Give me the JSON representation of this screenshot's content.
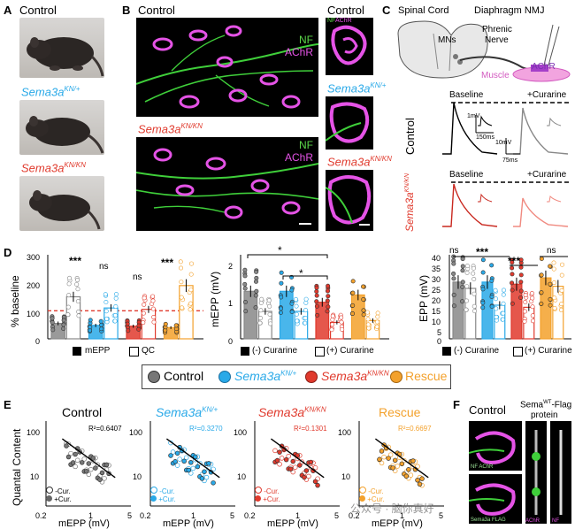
{
  "panels": {
    "A": "A",
    "B": "B",
    "C": "C",
    "D": "D",
    "E": "E",
    "F": "F"
  },
  "panelA": {
    "labels": [
      {
        "text": "Control",
        "sup": ""
      },
      {
        "text": "Sema3a",
        "sup": "KN/+"
      },
      {
        "text": "Sema3a",
        "sup": "KN/KN"
      }
    ]
  },
  "panelB": {
    "control": "Control",
    "ko_base": "Sema3a",
    "ko_sup": "KN/KN",
    "nf": "NF",
    "achr": "AChR",
    "side_control": "Control",
    "side_het_base": "Sema3a",
    "side_het_sup": "KN/+",
    "side_ko_base": "Sema3a",
    "side_ko_sup": "KN/KN",
    "side_small_nf": "NF",
    "side_small_achr": "AChR"
  },
  "panelC": {
    "spinal": "Spinal Cord",
    "nmj": "Diaphragm NMJ",
    "mns": "MNs",
    "phrenic1": "Phrenic",
    "phrenic2": "Nerve",
    "achr": "AChR",
    "muscle": "Muscle",
    "baseline": "Baseline",
    "curarine": "+Curarine",
    "control": "Control",
    "ko_base": "Sema3a",
    "ko_sup": "KN/KN",
    "sb1_v": "1mV",
    "sb1_t": "150ms",
    "sb2_v": "10mV",
    "sb2_t": "75ms"
  },
  "panelD": {
    "chart1": {
      "ylabel": "% baseline",
      "yticks": [
        "0",
        "100",
        "200",
        "300"
      ],
      "stars": [
        "***",
        "ns",
        "ns",
        "***"
      ],
      "legend": [
        "mEPP",
        "QC"
      ]
    },
    "chart2": {
      "ylabel": "mEPP (mV)",
      "yticks": [
        "0",
        "1",
        "2"
      ],
      "stars": [
        "*",
        "*"
      ],
      "legend": [
        "(-) Curarine",
        "(+) Curarine"
      ]
    },
    "chart3": {
      "ylabel": "EPP (mV)",
      "yticks": [
        "0",
        "5",
        "10",
        "15",
        "20",
        "25",
        "30",
        "35",
        "40"
      ],
      "stars": [
        "ns",
        "***",
        "***",
        "ns"
      ],
      "legend": [
        "(-) Curarine",
        "(+) Curarine"
      ]
    },
    "groups": [
      {
        "base": "Control",
        "sup": ""
      },
      {
        "base": "Sema3a",
        "sup": "KN/+"
      },
      {
        "base": "Sema3a",
        "sup": "KN/KN"
      },
      {
        "base": "Rescue",
        "sup": ""
      }
    ]
  },
  "chart_data": [
    {
      "type": "bar",
      "title": "",
      "ylabel": "% baseline",
      "ylim": [
        0,
        300
      ],
      "categories": [
        "Control",
        "Sema3a KN/+",
        "Sema3a KN/KN",
        "Rescue"
      ],
      "series": [
        {
          "name": "mEPP",
          "values": [
            55,
            48,
            45,
            40
          ]
        },
        {
          "name": "QC",
          "values": [
            150,
            110,
            105,
            190
          ]
        }
      ],
      "reference_line": 100
    },
    {
      "type": "bar",
      "title": "",
      "ylabel": "mEPP (mV)",
      "ylim": [
        0,
        2.3
      ],
      "categories": [
        "Control",
        "Sema3a KN/+",
        "Sema3a KN/KN",
        "Rescue"
      ],
      "series": [
        {
          "name": "(-) Curarine",
          "values": [
            1.3,
            1.3,
            1.0,
            1.2
          ]
        },
        {
          "name": "(+) Curarine",
          "values": [
            0.75,
            0.75,
            0.45,
            0.5
          ]
        }
      ]
    },
    {
      "type": "bar",
      "title": "",
      "ylabel": "EPP (mV)",
      "ylim": [
        0,
        40
      ],
      "categories": [
        "Control",
        "Sema3a KN/+",
        "Sema3a KN/KN",
        "Rescue"
      ],
      "series": [
        {
          "name": "(-) Curarine",
          "values": [
            27,
            27,
            26,
            29
          ]
        },
        {
          "name": "(+) Curarine",
          "values": [
            24,
            16,
            15,
            25
          ]
        }
      ]
    },
    {
      "type": "scatter",
      "title": "Control",
      "xlabel": "mEPP (mV)",
      "ylabel": "Quantal Content",
      "r2": "R²=0.6407",
      "xlim": [
        0.2,
        5
      ],
      "ylim": [
        1,
        100
      ],
      "log": true
    },
    {
      "type": "scatter",
      "title": "Sema3a KN/+",
      "xlabel": "mEPP (mV)",
      "r2": "R²=0.3270",
      "xlim": [
        0.2,
        5
      ],
      "ylim": [
        1,
        100
      ],
      "log": true
    },
    {
      "type": "scatter",
      "title": "Sema3a KN/KN",
      "xlabel": "mEPP (mV)",
      "r2": "R²=0.1301",
      "xlim": [
        0.2,
        5
      ],
      "ylim": [
        1,
        100
      ],
      "log": true
    },
    {
      "type": "scatter",
      "title": "Rescue",
      "xlabel": "mEPP (mV)",
      "r2": "R²=0.6697",
      "xlim": [
        0.2,
        5
      ],
      "ylim": [
        1,
        100
      ],
      "log": true
    }
  ],
  "panelE": {
    "ylabel": "Quantal Content",
    "xlabel": "mEPP (mV)",
    "titles": [
      {
        "base": "Control",
        "sup": ""
      },
      {
        "base": "Sema3a",
        "sup": "KN/+"
      },
      {
        "base": "Sema3a",
        "sup": "KN/KN"
      },
      {
        "base": "Rescue",
        "sup": ""
      }
    ],
    "r2": [
      "R²=0.6407",
      "R²=0.3270",
      "R²=0.1301",
      "R²=0.6697"
    ],
    "legend_minus": "-Cur.",
    "legend_plus": "+Cur.",
    "xticks": [
      "0.2",
      "1",
      "5"
    ],
    "yticks": [
      "10",
      "100"
    ]
  },
  "panelF": {
    "control": "Control",
    "sema_title_base": "Sema",
    "sema_title_sup": "WT",
    "sema_title_rest": "-Flag",
    "protein": "protein",
    "nf_achr": "NF AChR",
    "bottom_labels": "Sema3a FLAG",
    "achr": "AChR",
    "nf": "NF"
  },
  "watermark": "公众号 · 脑你真好"
}
